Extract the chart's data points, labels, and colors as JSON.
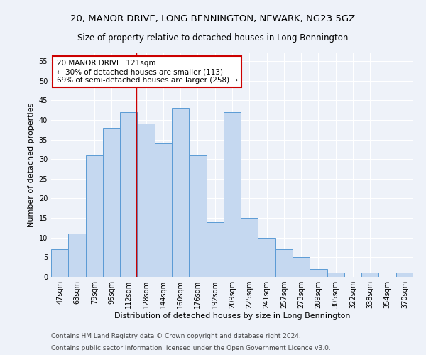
{
  "title1": "20, MANOR DRIVE, LONG BENNINGTON, NEWARK, NG23 5GZ",
  "title2": "Size of property relative to detached houses in Long Bennington",
  "xlabel": "Distribution of detached houses by size in Long Bennington",
  "ylabel": "Number of detached properties",
  "categories": [
    "47sqm",
    "63sqm",
    "79sqm",
    "95sqm",
    "112sqm",
    "128sqm",
    "144sqm",
    "160sqm",
    "176sqm",
    "192sqm",
    "209sqm",
    "225sqm",
    "241sqm",
    "257sqm",
    "273sqm",
    "289sqm",
    "305sqm",
    "322sqm",
    "338sqm",
    "354sqm",
    "370sqm"
  ],
  "values": [
    7,
    11,
    31,
    38,
    42,
    39,
    34,
    43,
    31,
    14,
    42,
    15,
    10,
    7,
    5,
    2,
    1,
    0,
    1,
    0,
    1
  ],
  "bar_color": "#c5d8f0",
  "bar_edge_color": "#5b9bd5",
  "background_color": "#eef2f9",
  "grid_color": "#ffffff",
  "annotation_box_text": "20 MANOR DRIVE: 121sqm\n← 30% of detached houses are smaller (113)\n69% of semi-detached houses are larger (258) →",
  "annotation_box_color": "#ffffff",
  "annotation_box_edge_color": "#cc0000",
  "vline_x_index": 4.4375,
  "vline_color": "#cc0000",
  "ylim": [
    0,
    57
  ],
  "yticks": [
    0,
    5,
    10,
    15,
    20,
    25,
    30,
    35,
    40,
    45,
    50,
    55
  ],
  "footer1": "Contains HM Land Registry data © Crown copyright and database right 2024.",
  "footer2": "Contains public sector information licensed under the Open Government Licence v3.0.",
  "title1_fontsize": 9.5,
  "title2_fontsize": 8.5,
  "xlabel_fontsize": 8,
  "ylabel_fontsize": 8,
  "tick_fontsize": 7,
  "annotation_fontsize": 7.5,
  "footer_fontsize": 6.5
}
